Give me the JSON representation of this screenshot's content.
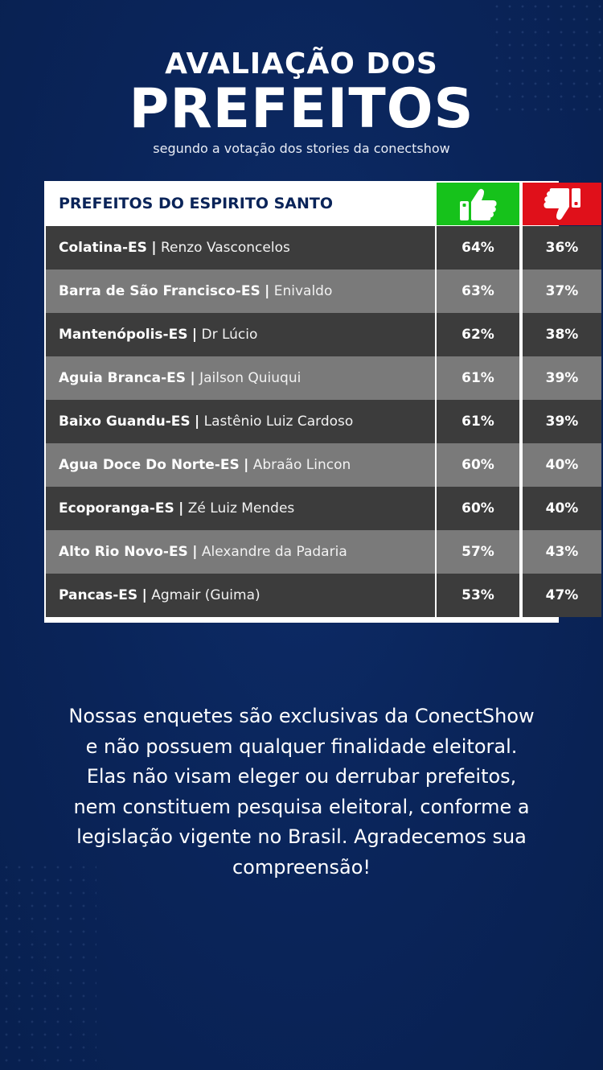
{
  "header": {
    "title_top": "AVALIAÇÃO DOS",
    "title_main": "PREFEITOS",
    "subtitle": "segundo a votação dos stories da conectshow"
  },
  "table": {
    "heading": "PREFEITOS DO ESPIRITO SANTO",
    "approve_icon": "thumbs-up-icon",
    "disapprove_icon": "thumbs-down-icon",
    "colors": {
      "approve": "#16c21b",
      "disapprove": "#e0101a",
      "row_dark": "#3c3c3c",
      "row_light": "#7a7a7a"
    },
    "rows": [
      {
        "city": "Colatina-ES",
        "separator": "|",
        "mayor": "Renzo Vasconcelos",
        "approve": "64%",
        "disapprove": "36%"
      },
      {
        "city": "Barra de São Francisco-ES",
        "separator": "|",
        "mayor": "Enivaldo",
        "approve": "63%",
        "disapprove": "37%"
      },
      {
        "city": "Mantenópolis-ES",
        "separator": "|",
        "mayor": "Dr Lúcio",
        "approve": "62%",
        "disapprove": "38%"
      },
      {
        "city": "Aguia Branca-ES",
        "separator": "|",
        "mayor": "Jailson Quiuqui",
        "approve": "61%",
        "disapprove": "39%"
      },
      {
        "city": "Baixo Guandu-ES",
        "separator": "|",
        "mayor": "Lastênio Luiz Cardoso",
        "approve": "61%",
        "disapprove": "39%"
      },
      {
        "city": "Agua Doce Do Norte-ES",
        "separator": "|",
        "mayor": "Abraão Lincon",
        "approve": "60%",
        "disapprove": "40%"
      },
      {
        "city": "Ecoporanga-ES",
        "separator": "|",
        "mayor": "Zé Luiz Mendes",
        "approve": "60%",
        "disapprove": "40%"
      },
      {
        "city": "Alto Rio Novo-ES",
        "separator": "|",
        "mayor": "Alexandre da Padaria",
        "approve": "57%",
        "disapprove": "43%"
      },
      {
        "city": "Pancas-ES",
        "separator": "|",
        "mayor": "Agmair (Guima)",
        "approve": "53%",
        "disapprove": "47%"
      }
    ]
  },
  "disclaimer": "Nossas enquetes são exclusivas da ConectShow e não possuem qualquer finalidade eleitoral. Elas não visam eleger ou derrubar prefeitos, nem constituem pesquisa eleitoral, conforme a legislação vigente no Brasil. Agradecemos sua compreensão!"
}
